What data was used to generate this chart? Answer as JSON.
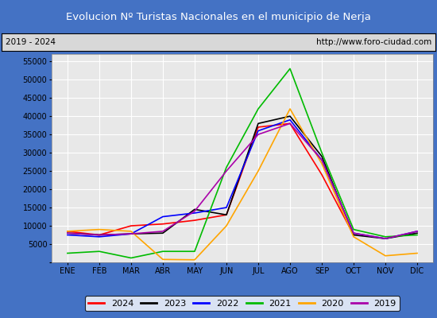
{
  "title": "Evolucion Nº Turistas Nacionales en el municipio de Nerja",
  "subtitle_left": "2019 - 2024",
  "subtitle_right": "http://www.foro-ciudad.com",
  "title_bg_color": "#4472c4",
  "title_text_color": "#ffffff",
  "months": [
    "ENE",
    "FEB",
    "MAR",
    "ABR",
    "MAY",
    "JUN",
    "JUL",
    "AGO",
    "SEP",
    "OCT",
    "NOV",
    "DIC"
  ],
  "ylim": [
    0,
    57000
  ],
  "yticks": [
    0,
    5000,
    10000,
    15000,
    20000,
    25000,
    30000,
    35000,
    40000,
    45000,
    50000,
    55000
  ],
  "series": {
    "2024": {
      "color": "#ff0000",
      "data": [
        8500,
        7500,
        10000,
        10500,
        11500,
        13000,
        37000,
        38000,
        24000,
        7500,
        null,
        null
      ]
    },
    "2023": {
      "color": "#000000",
      "data": [
        8000,
        7500,
        7800,
        8000,
        14500,
        13000,
        38000,
        40000,
        29000,
        7500,
        6500,
        8000
      ]
    },
    "2022": {
      "color": "#0000ff",
      "data": [
        7500,
        7000,
        7800,
        12500,
        13500,
        15000,
        36000,
        39000,
        28000,
        8000,
        6500,
        8500
      ]
    },
    "2021": {
      "color": "#00bb00",
      "data": [
        2500,
        3000,
        1200,
        3000,
        3000,
        26000,
        42000,
        53000,
        30000,
        9000,
        7000,
        7500
      ]
    },
    "2020": {
      "color": "#ffa500",
      "data": [
        8500,
        9000,
        8500,
        800,
        700,
        10000,
        25000,
        42000,
        27000,
        7000,
        1800,
        2500
      ]
    },
    "2019": {
      "color": "#aa00aa",
      "data": [
        8000,
        7500,
        7800,
        8500,
        14000,
        25000,
        35000,
        38000,
        28000,
        8000,
        6500,
        8500
      ]
    }
  },
  "legend_order": [
    "2024",
    "2023",
    "2022",
    "2021",
    "2020",
    "2019"
  ],
  "bg_color": "#e8e8e8",
  "plot_bg_color": "#e8e8e8",
  "grid_color": "#ffffff",
  "subtitle_box_color": "#d8d8d8",
  "subtitle_box_edge": "#000000",
  "outer_bg": "#4472c4"
}
